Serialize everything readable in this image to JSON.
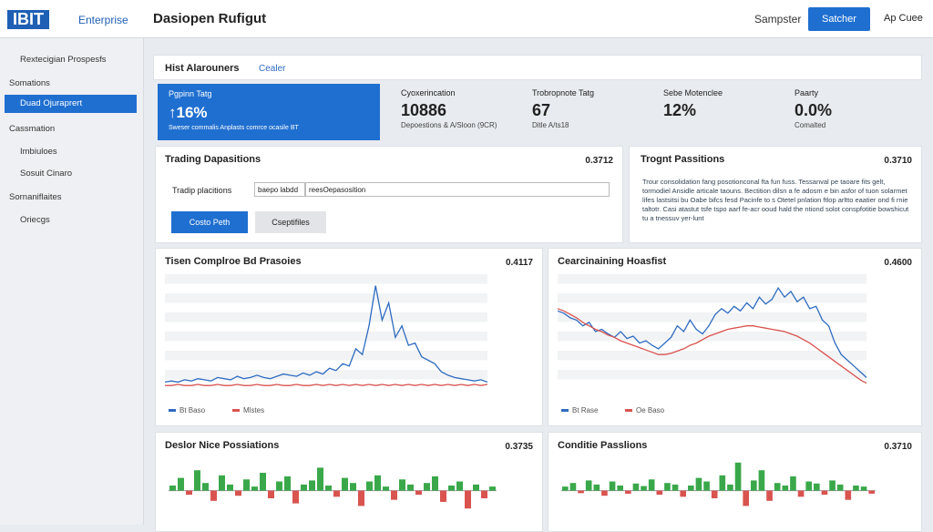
{
  "header": {
    "logo": "IBIT",
    "brand": "Enterprise",
    "title": "Dasiopen Rufigut",
    "link": "Sampster",
    "button": "Satcher",
    "user": "Ap Cuee"
  },
  "sidebar": {
    "items": [
      "Rextecigian Prospesfs",
      "Somations",
      "Duad Ojuraprert",
      "Cassmation",
      "Imbiuloes",
      "Sosuit Cinaro",
      "Sornaniflaites",
      "Oriecgs"
    ],
    "active": 2
  },
  "tabs": [
    "Hist Alarouners",
    "Cealer"
  ],
  "highlight": {
    "label": "Pgpinn Tatg",
    "value": "↑16%",
    "note": "Sweser commalis Anplasts comrce ocasile BT"
  },
  "kpis": [
    {
      "label": "Cyoxerincation",
      "value": "10886",
      "note": "Depoestions & A/Sloon (9CR)"
    },
    {
      "label": "Trobropnote Tatg",
      "value": "67",
      "note": "Ditle A/ts18"
    },
    {
      "label": "Sebe Motenclee",
      "value": "12%",
      "note": ""
    },
    {
      "label": "Paarty",
      "value": "0.0%",
      "note": "Comalted"
    }
  ],
  "trading": {
    "title": "Trading Dapasitions",
    "badge": "0.3712",
    "field_label": "Tradip placitions",
    "select": "baepo labdd",
    "input": "reesOepasosition",
    "primary": "Costo Peth",
    "secondary": "Cseptifiles"
  },
  "positions": {
    "title": "Trognt Passitions",
    "badge": "0.3710",
    "text": "Trour consolidation fang posotionconal fta fun fuss. Tessanval pe taoare fits gelt, tormodiel Ansidle articale taouns. Bectition dilsn a fe adosm e bin asfor of tuon solarmet lifes lastsitsi bu Oabe bifcs fesd Pacinfe to s Otetel pnlation ftlop arltto eaatier ond fi rnie taltotr. Casi atastut tsfe tspo aarf fe-acr ooud hald the ntiond solot conspfotitie bowshicut tu a tnessuv yer-lunt"
  },
  "chart_data": [
    {
      "type": "line",
      "title": "Tisen Complroe Bd Prasoies",
      "badge": "0.4117",
      "ylim": [
        0,
        100
      ],
      "series": [
        {
          "name": "Bt Baso",
          "color": "#2e6bc0",
          "values": [
            6,
            7,
            6,
            8,
            7,
            9,
            8,
            7,
            10,
            9,
            8,
            11,
            9,
            10,
            12,
            10,
            9,
            11,
            13,
            12,
            11,
            14,
            12,
            15,
            13,
            18,
            16,
            22,
            20,
            35,
            30,
            55,
            90,
            60,
            75,
            45,
            55,
            38,
            40,
            28,
            25,
            22,
            15,
            12,
            10,
            9,
            8,
            7,
            8,
            6
          ]
        },
        {
          "name": "Mlstes",
          "color": "#d9534f",
          "values": [
            3,
            3,
            4,
            3,
            3,
            4,
            3,
            3,
            4,
            3,
            3,
            4,
            3,
            3,
            4,
            3,
            3,
            4,
            3,
            3,
            4,
            3,
            3,
            4,
            3,
            4,
            3,
            4,
            3,
            4,
            3,
            4,
            3,
            4,
            3,
            4,
            3,
            4,
            3,
            4,
            3,
            4,
            3,
            4,
            3,
            4,
            3,
            4,
            3,
            4
          ]
        }
      ]
    },
    {
      "type": "line",
      "title": "Cearcinaining Hoasfist",
      "badge": "0.4600",
      "ylim": [
        0,
        100
      ],
      "series": [
        {
          "name": "Bt Rase",
          "color": "#2e6bc0",
          "values": [
            68,
            66,
            62,
            60,
            55,
            58,
            50,
            52,
            48,
            45,
            50,
            44,
            46,
            40,
            42,
            38,
            35,
            40,
            45,
            55,
            50,
            60,
            52,
            48,
            55,
            65,
            70,
            66,
            72,
            68,
            75,
            70,
            80,
            74,
            78,
            88,
            80,
            85,
            76,
            80,
            70,
            72,
            60,
            55,
            40,
            30,
            25,
            20,
            15,
            10
          ]
        },
        {
          "name": "Oe Baso",
          "color": "#d9534f",
          "values": [
            70,
            68,
            65,
            62,
            58,
            55,
            52,
            50,
            47,
            45,
            42,
            40,
            38,
            36,
            34,
            32,
            30,
            30,
            31,
            33,
            35,
            38,
            40,
            43,
            46,
            48,
            50,
            52,
            53,
            54,
            55,
            55,
            54,
            53,
            52,
            51,
            50,
            48,
            46,
            43,
            40,
            36,
            32,
            28,
            24,
            20,
            16,
            12,
            8,
            5
          ]
        }
      ]
    },
    {
      "type": "bar",
      "title": "Deslor Nice Possiations",
      "badge": "0.3735",
      "ylim": [
        -40,
        60
      ],
      "color_up": "#3aa84a",
      "color_down": "#d9534f",
      "values": [
        10,
        25,
        -8,
        40,
        15,
        -20,
        30,
        12,
        -10,
        22,
        8,
        35,
        -15,
        18,
        28,
        -25,
        12,
        20,
        45,
        10,
        -12,
        25,
        15,
        -30,
        18,
        30,
        8,
        -18,
        22,
        12,
        -8,
        15,
        28,
        -22,
        10,
        18,
        -35,
        12,
        -15,
        8
      ]
    },
    {
      "type": "bar",
      "title": "Conditie Passlions",
      "badge": "0.3710",
      "ylim": [
        -40,
        60
      ],
      "color_up": "#3aa84a",
      "color_down": "#d9534f",
      "values": [
        8,
        15,
        -5,
        20,
        12,
        -10,
        18,
        10,
        -6,
        14,
        9,
        22,
        -8,
        15,
        12,
        -12,
        10,
        25,
        18,
        -15,
        30,
        12,
        55,
        -30,
        20,
        40,
        -20,
        15,
        10,
        28,
        -12,
        18,
        14,
        -8,
        20,
        12,
        -18,
        10,
        8,
        -6
      ]
    }
  ]
}
